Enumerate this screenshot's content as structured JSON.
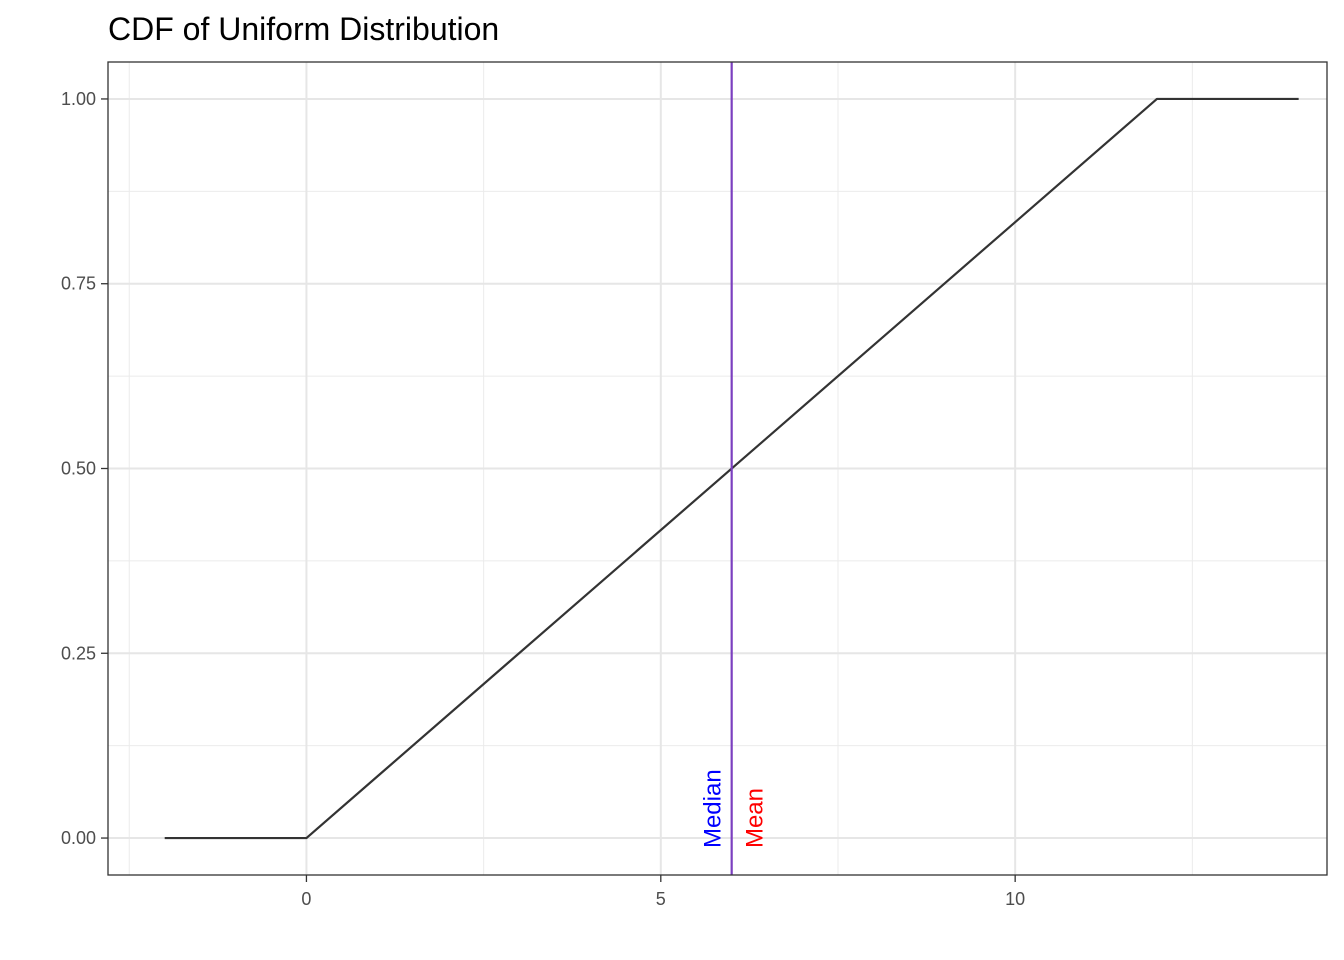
{
  "chart_data": {
    "type": "line",
    "title": "CDF of Uniform Distribution",
    "xlabel": "",
    "ylabel": "",
    "xlim": [
      -2.8,
      14.4
    ],
    "ylim": [
      -0.05,
      1.05
    ],
    "x_ticks": [
      0,
      5,
      10
    ],
    "y_ticks": [
      0,
      0.25,
      0.5,
      0.75,
      1
    ],
    "x_tick_labels": [
      "0",
      "5",
      "10"
    ],
    "y_tick_labels": [
      "0.00",
      "0.25",
      "0.50",
      "0.75",
      "1.00"
    ],
    "grid": true,
    "legend": "none",
    "series": [
      {
        "color": "#333333",
        "x": [
          -2,
          0,
          12,
          14
        ],
        "y": [
          0,
          0,
          1,
          1
        ]
      }
    ],
    "vlines": [
      {
        "x": 6,
        "color": "#7b3fbf"
      }
    ],
    "annotations": [
      {
        "text": "Median",
        "x": 6,
        "color": "#0000ff",
        "side": "left"
      },
      {
        "text": "Mean",
        "x": 6,
        "color": "#ff0000",
        "side": "right"
      }
    ]
  }
}
